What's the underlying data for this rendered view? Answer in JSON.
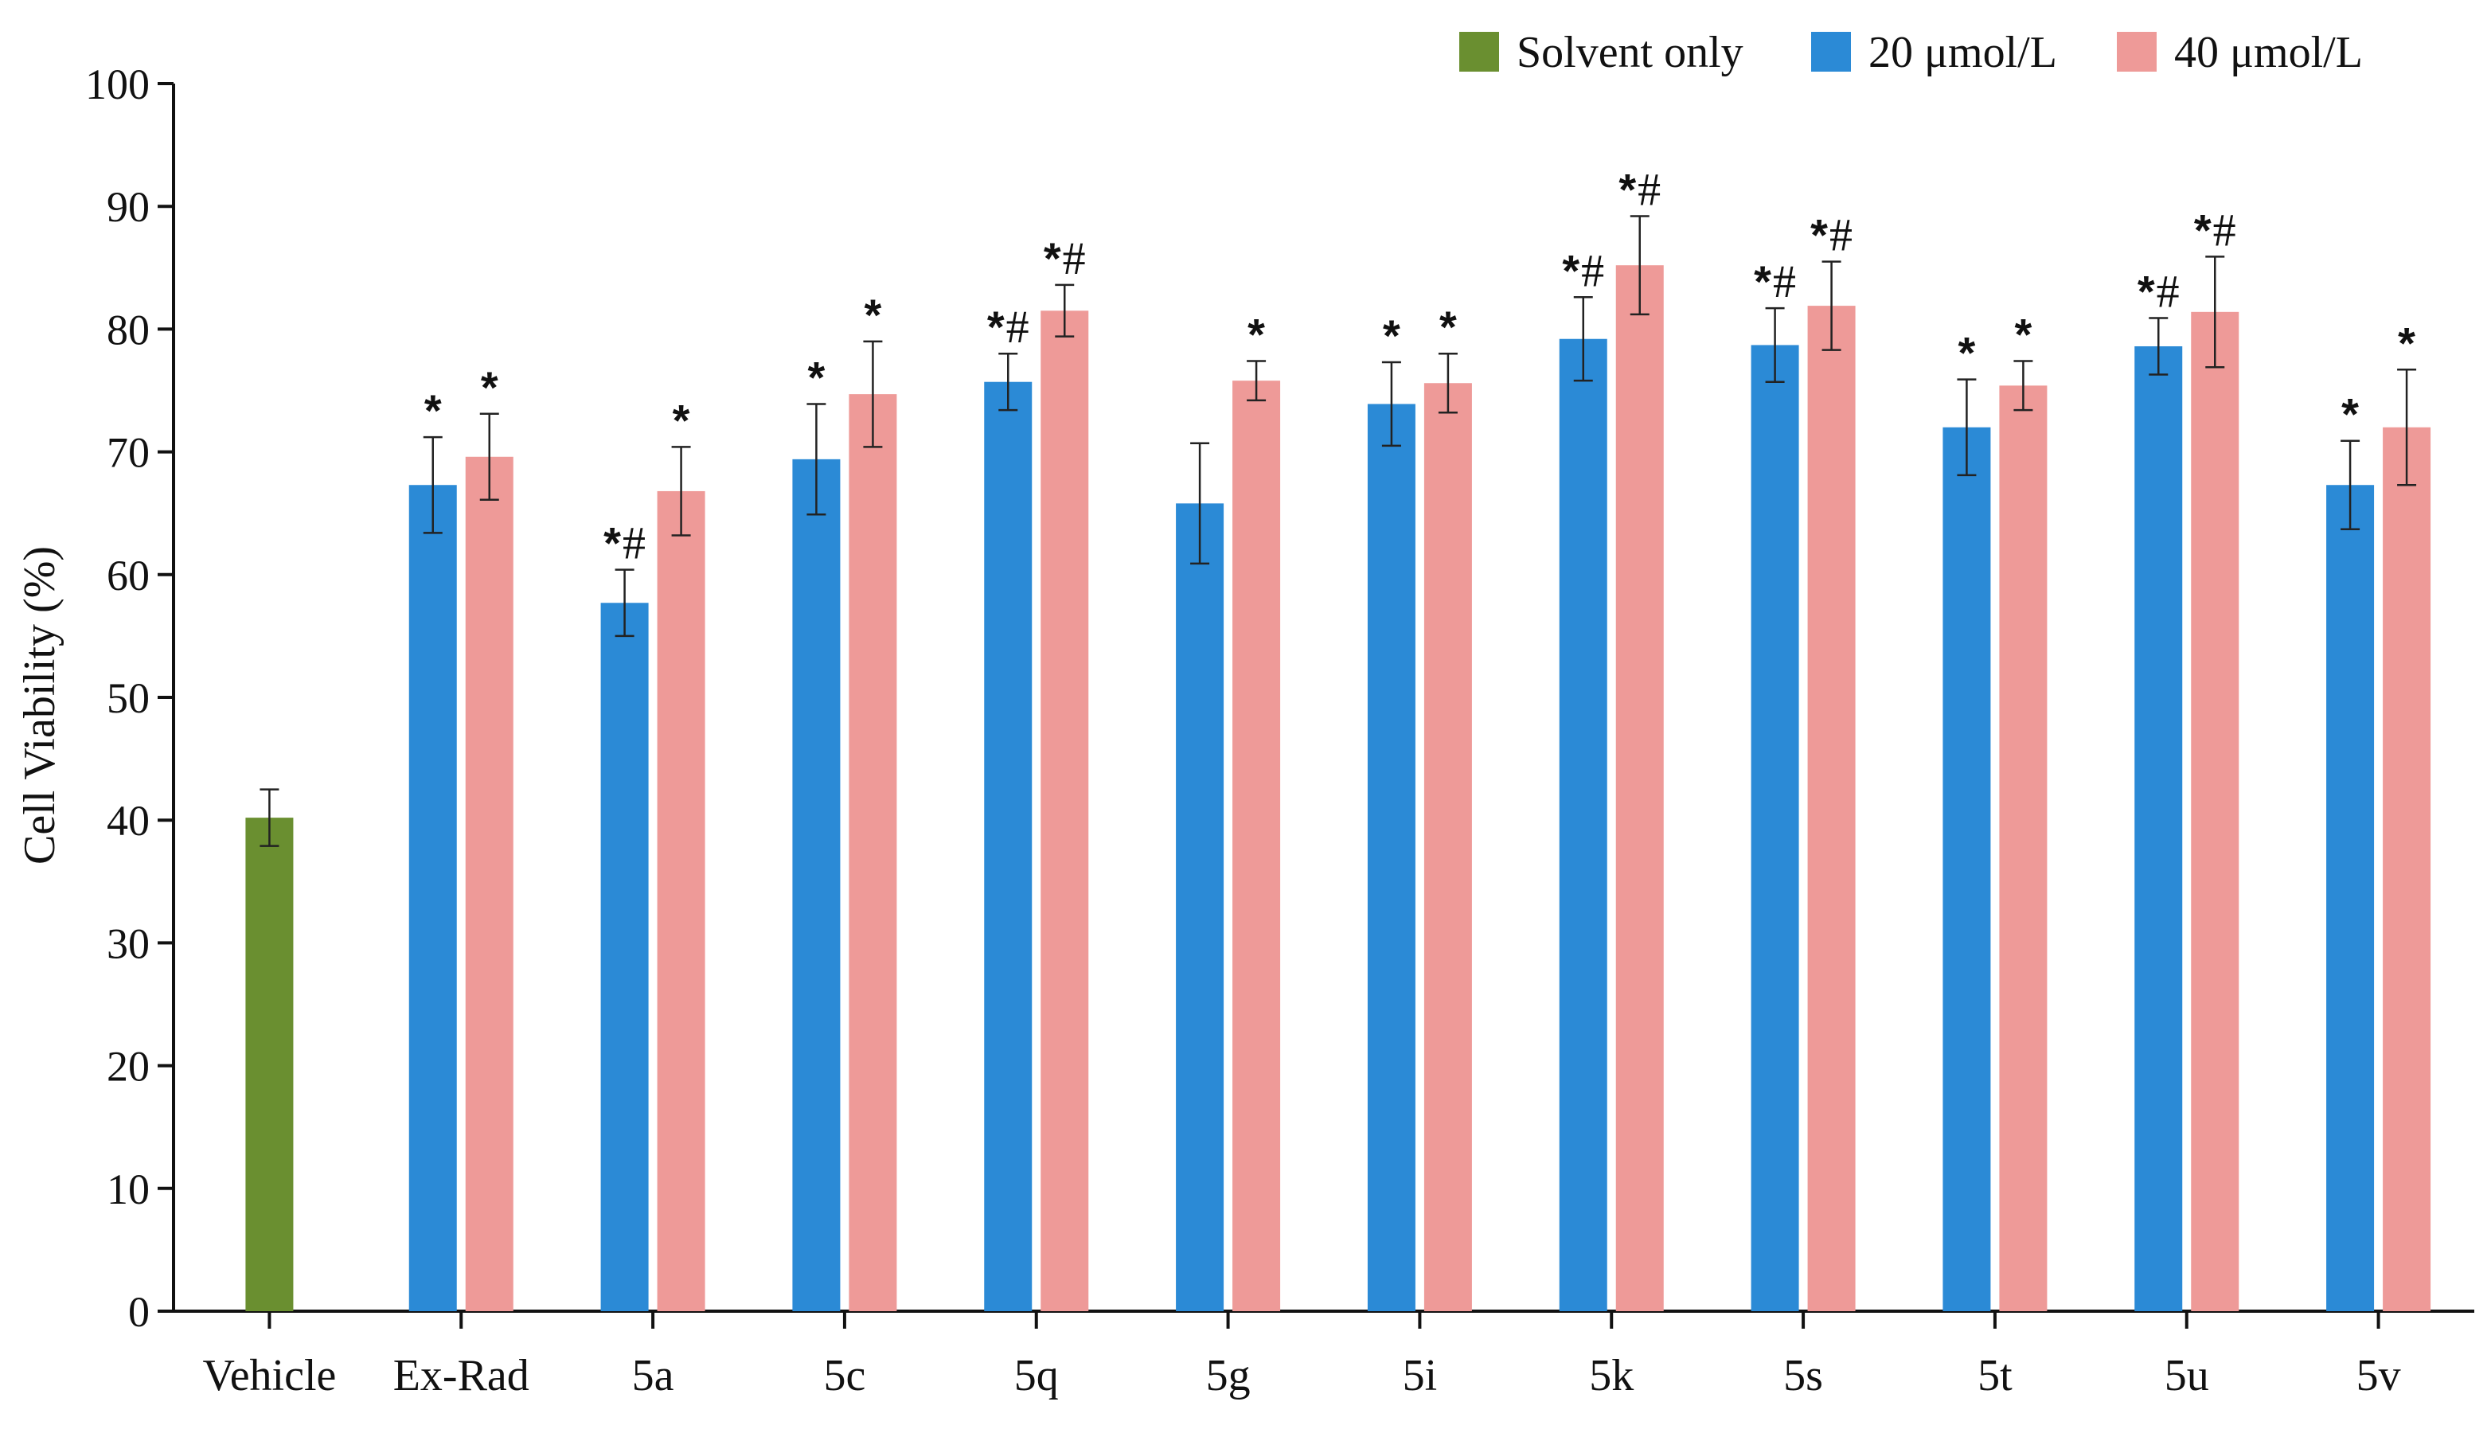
{
  "chart_data": {
    "type": "bar",
    "title": "",
    "xlabel": "",
    "ylabel": "Cell Viability (%)",
    "ylim": [
      0,
      100
    ],
    "yticks": [
      0,
      10,
      20,
      30,
      40,
      50,
      60,
      70,
      80,
      90,
      100
    ],
    "grid": false,
    "legend_position": "top-right",
    "categories": [
      "Vehicle",
      "Ex-Rad",
      "5a",
      "5c",
      "5q",
      "5g",
      "5i",
      "5k",
      "5s",
      "5t",
      "5u",
      "5v"
    ],
    "series": [
      {
        "name": "Solvent only",
        "color": "#6a8f30",
        "values": [
          40.2,
          null,
          null,
          null,
          null,
          null,
          null,
          null,
          null,
          null,
          null,
          null
        ],
        "errors": [
          2.3,
          null,
          null,
          null,
          null,
          null,
          null,
          null,
          null,
          null,
          null,
          null
        ],
        "annotations": [
          "",
          "",
          "",
          "",
          "",
          "",
          "",
          "",
          "",
          "",
          "",
          ""
        ]
      },
      {
        "name": "20 μmol/L",
        "color": "#2b8ad6",
        "values": [
          null,
          67.3,
          57.7,
          69.4,
          75.7,
          65.8,
          73.9,
          79.2,
          78.7,
          72.0,
          78.6,
          67.3
        ],
        "errors": [
          null,
          3.9,
          2.7,
          4.5,
          2.3,
          4.9,
          3.4,
          3.4,
          3.0,
          3.9,
          2.3,
          3.6
        ],
        "annotations": [
          "",
          "*",
          "*#",
          "*",
          "*#",
          "",
          "*",
          "*#",
          "*#",
          "*",
          "*#",
          "*"
        ]
      },
      {
        "name": "40 μmol/L",
        "color": "#ee9a98",
        "values": [
          null,
          69.6,
          66.8,
          74.7,
          81.5,
          75.8,
          75.6,
          85.2,
          81.9,
          75.4,
          81.4,
          72.0
        ],
        "errors": [
          null,
          3.5,
          3.6,
          4.3,
          2.1,
          1.6,
          2.4,
          4.0,
          3.6,
          2.0,
          4.5,
          4.7
        ],
        "annotations": [
          "",
          "*",
          "*",
          "*",
          "*#",
          "*",
          "*",
          "*#",
          "*#",
          "*",
          "*#",
          "*"
        ]
      }
    ]
  }
}
